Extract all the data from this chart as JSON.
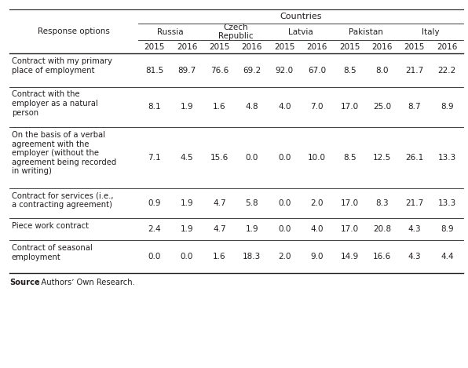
{
  "title": "Countries",
  "source_bold": "Source",
  "source_rest": ": Authorsʼ Own Research.",
  "col_header_level1": [
    "Russia",
    "Czech\nRepublic",
    "Latvia",
    "Pakistan",
    "Italy"
  ],
  "col_header_level2": [
    "2015",
    "2016",
    "2015",
    "2016",
    "2015",
    "2016",
    "2015",
    "2016",
    "2015",
    "2016"
  ],
  "row_labels": [
    "Contract with my primary\nplace of employment",
    "Contract with the\nemployer as a natural\nperson",
    "On the basis of a verbal\nagreement with the\nemployer (without the\nagreement being recorded\nin writing)",
    "Contract for services (i.e.,\na contracting agreement)",
    "Piece work contract",
    "Contract of seasonal\nemployment"
  ],
  "row_header": "Response options",
  "data": [
    [
      81.5,
      89.7,
      76.6,
      69.2,
      92.0,
      67.0,
      8.5,
      8.0,
      21.7,
      22.2
    ],
    [
      8.1,
      1.9,
      1.6,
      4.8,
      4.0,
      7.0,
      17.0,
      25.0,
      8.7,
      8.9
    ],
    [
      7.1,
      4.5,
      15.6,
      0.0,
      0.0,
      10.0,
      8.5,
      12.5,
      26.1,
      13.3
    ],
    [
      0.9,
      1.9,
      4.7,
      5.8,
      0.0,
      2.0,
      17.0,
      8.3,
      21.7,
      13.3
    ],
    [
      2.4,
      1.9,
      4.7,
      1.9,
      0.0,
      4.0,
      17.0,
      20.8,
      4.3,
      8.9
    ],
    [
      0.0,
      0.0,
      1.6,
      18.3,
      2.0,
      9.0,
      14.9,
      16.6,
      4.3,
      4.4
    ]
  ],
  "bg_color": "#ffffff",
  "text_color": "#231f20",
  "line_color": "#231f20",
  "font_size": 7.5
}
